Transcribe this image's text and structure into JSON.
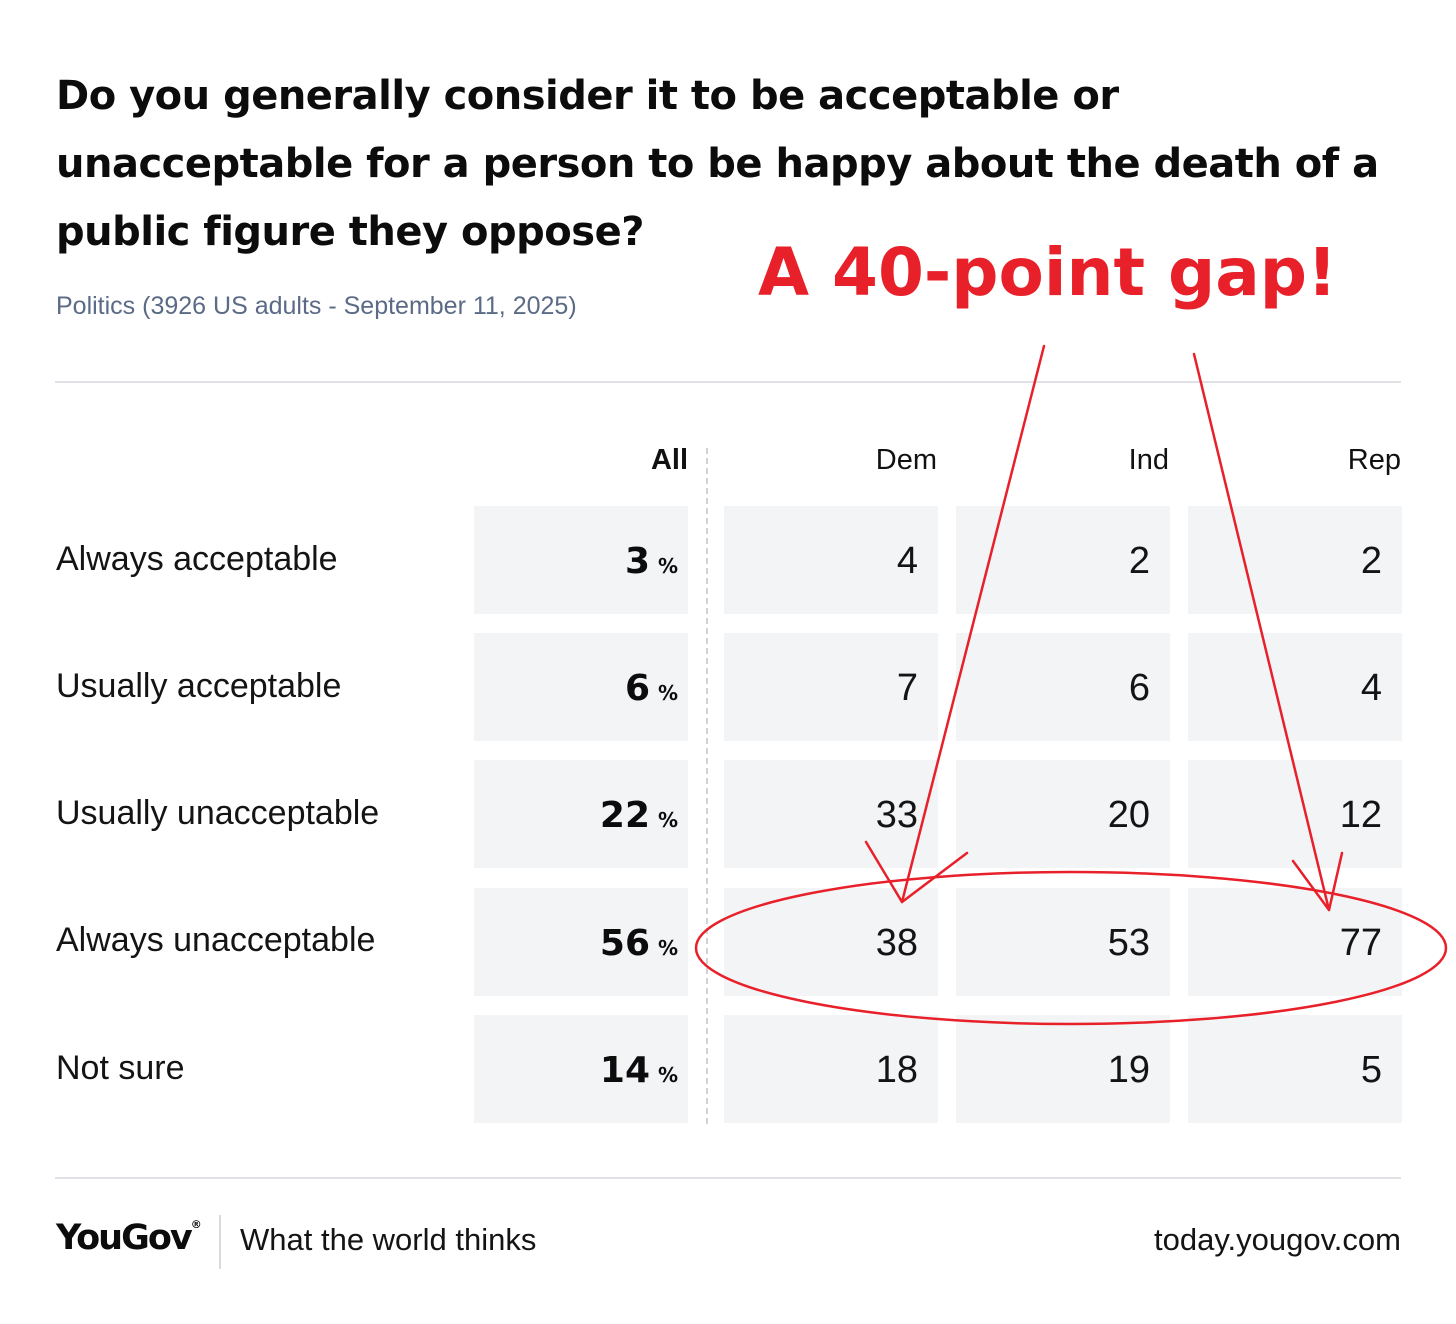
{
  "title": "Do you generally consider it to be acceptable or unacceptable for a person to be happy about the death of a public figure they oppose?",
  "subtitle": "Politics (3926 US adults - September 11, 2025)",
  "annotation": "A 40-point gap!",
  "colors": {
    "annotation": "#e8202a",
    "cell_bg": "#f3f4f6",
    "subtitle": "#5b6b86"
  },
  "footer": {
    "brand": "YouGov",
    "brand_mark": "®",
    "tagline": "What the world thinks",
    "site": "today.yougov.com"
  },
  "chart_data": {
    "type": "table",
    "columns": [
      "All",
      "Dem",
      "Ind",
      "Rep"
    ],
    "unit": "%",
    "rows": [
      {
        "label": "Always acceptable",
        "all": "3",
        "dem": "4",
        "ind": "2",
        "rep": "2"
      },
      {
        "label": "Usually acceptable",
        "all": "6",
        "dem": "7",
        "ind": "6",
        "rep": "4"
      },
      {
        "label": "Usually unacceptable",
        "all": "22",
        "dem": "33",
        "ind": "20",
        "rep": "12"
      },
      {
        "label": "Always unacceptable",
        "all": "56",
        "dem": "38",
        "ind": "53",
        "rep": "77"
      },
      {
        "label": "Not sure",
        "all": "14",
        "dem": "18",
        "ind": "19",
        "rep": "5"
      }
    ]
  }
}
